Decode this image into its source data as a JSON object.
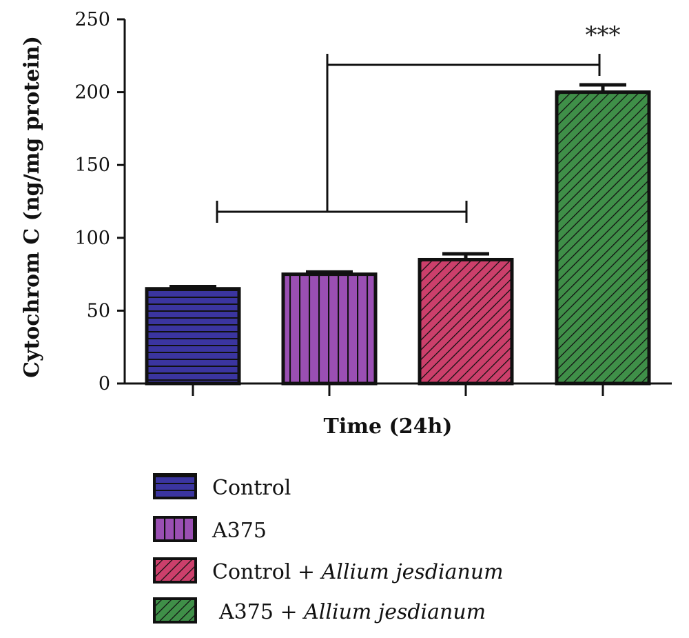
{
  "chart_data": {
    "type": "bar",
    "xlabel": "Time (24h)",
    "ylabel": "Cytochrom C (ng/mg protein)",
    "ylim": [
      0,
      250
    ],
    "yticks": [
      "0",
      "50",
      "100",
      "150",
      "200",
      "250"
    ],
    "categories": [
      "Control",
      "A375",
      "Control + Allium jesdianum",
      "A375 + Allium jesdianum"
    ],
    "series": [
      {
        "values": [
          65,
          75,
          85,
          200
        ],
        "errors": [
          1.5,
          1.5,
          4,
          5
        ],
        "colors": [
          "#3b35a0",
          "#9a4fb3",
          "#cc3f6b",
          "#3f8f48"
        ],
        "patterns": [
          "horizontal",
          "vertical",
          "diagonal",
          "diagonal"
        ]
      }
    ],
    "significance": {
      "label": "***",
      "compare_bar": 3,
      "group_bars": [
        0,
        2
      ]
    },
    "legend": {
      "position": "bottom-center",
      "entries": [
        {
          "plain": "Control",
          "italic": ""
        },
        {
          "plain": "A375",
          "italic": ""
        },
        {
          "plain": "Control + ",
          "italic": "Allium jesdianum"
        },
        {
          "plain": "A375 + ",
          "italic": "Allium jesdianum"
        }
      ]
    }
  }
}
